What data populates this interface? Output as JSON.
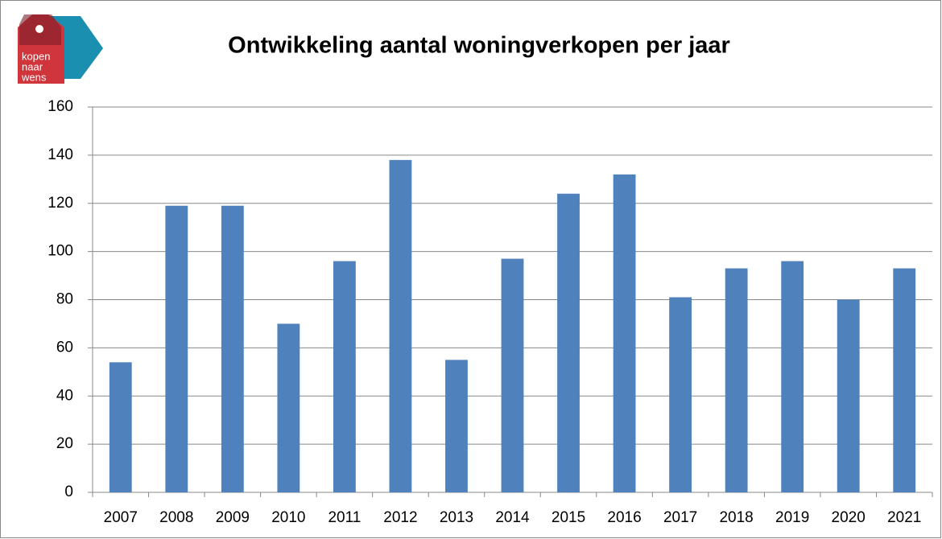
{
  "chart_data": {
    "type": "bar",
    "title": "Ontwikkeling aantal woningverkopen per jaar",
    "logo_text": [
      "kopen",
      "naar",
      "wens"
    ],
    "categories": [
      "2007",
      "2008",
      "2009",
      "2010",
      "2011",
      "2012",
      "2013",
      "2014",
      "2015",
      "2016",
      "2017",
      "2018",
      "2019",
      "2020",
      "2021"
    ],
    "values": [
      54,
      119,
      119,
      70,
      96,
      138,
      55,
      97,
      124,
      132,
      81,
      93,
      96,
      80,
      93
    ],
    "color": "#4f81bd",
    "ylim": [
      0,
      160
    ],
    "yticks": [
      0,
      20,
      40,
      60,
      80,
      100,
      120,
      140,
      160
    ],
    "grid": true
  }
}
